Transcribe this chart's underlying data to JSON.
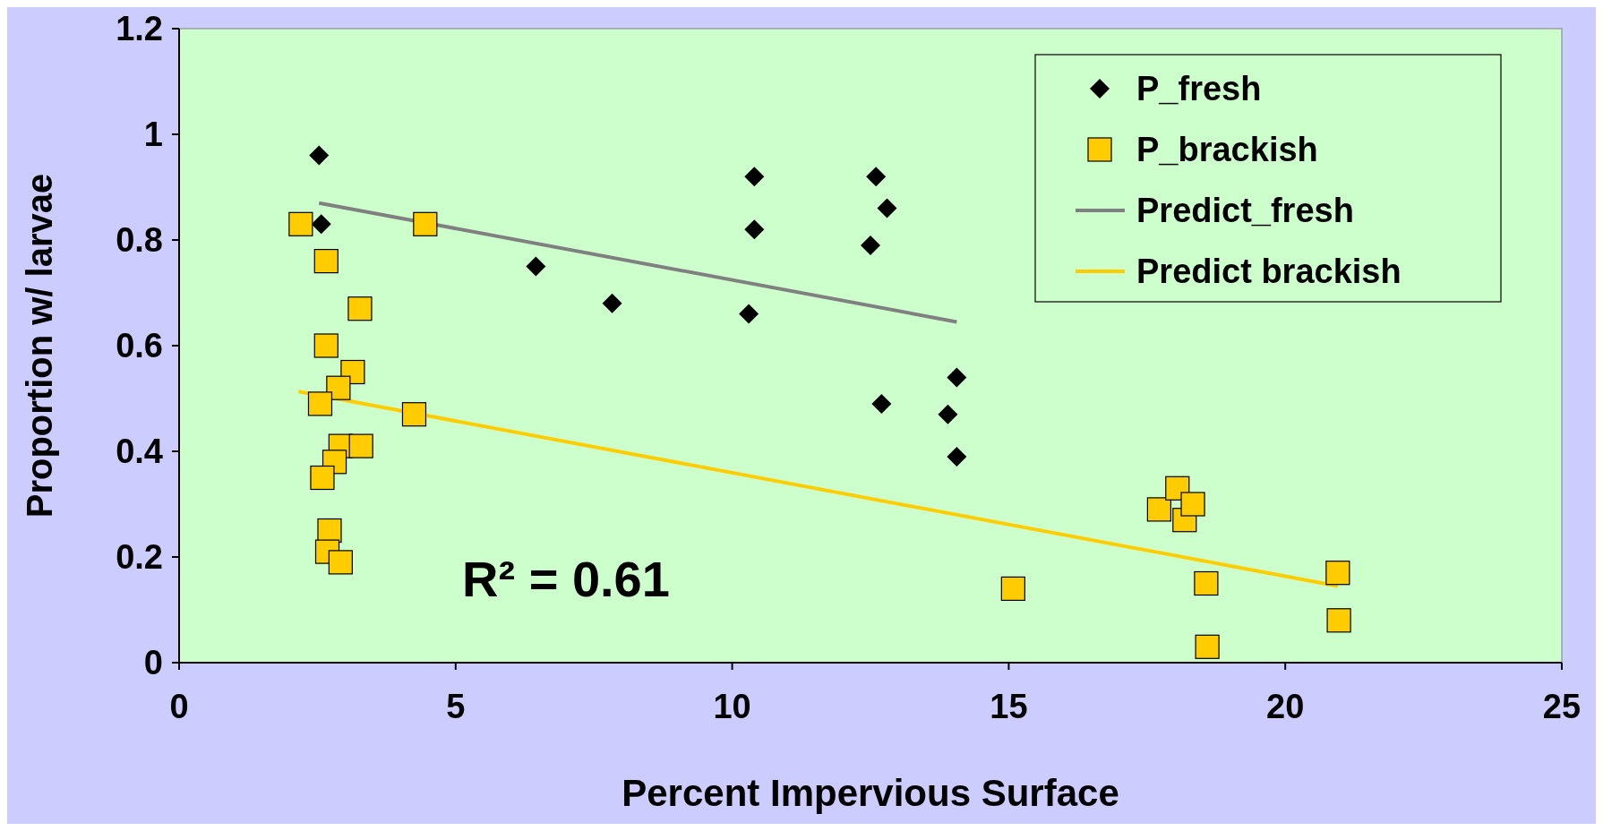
{
  "chart_data": {
    "type": "scatter",
    "xlabel": "Percent Impervious Surface",
    "ylabel": "Proportion w/ larvae",
    "xlim": [
      0,
      25
    ],
    "xticks": [
      0,
      5,
      10,
      15,
      20,
      25
    ],
    "ylim": [
      0,
      1.2
    ],
    "yticks": [
      0,
      0.2,
      0.4,
      0.6,
      0.8,
      1,
      1.2
    ],
    "grid": false,
    "legend": "top right",
    "annotations": [
      "R² = 0.61"
    ],
    "series": [
      {
        "name": "P_fresh",
        "marker": "diamond",
        "color": "#000000",
        "x": [
          2.53,
          2.57,
          6.45,
          7.83,
          10.4,
          10.4,
          10.3,
          12.6,
          12.8,
          12.5,
          12.7,
          14.06,
          13.9,
          14.06
        ],
        "values": [
          0.96,
          0.83,
          0.75,
          0.68,
          0.92,
          0.82,
          0.66,
          0.92,
          0.86,
          0.79,
          0.49,
          0.54,
          0.47,
          0.39
        ]
      },
      {
        "name": "P_brackish",
        "marker": "square",
        "color": "#ffcc00",
        "x": [
          2.2,
          4.45,
          2.66,
          3.27,
          2.66,
          3.14,
          2.88,
          2.55,
          4.25,
          2.92,
          3.29,
          2.81,
          2.59,
          2.72,
          2.68,
          2.92,
          17.72,
          18.05,
          18.18,
          18.33,
          15.08,
          18.57,
          18.59,
          20.95,
          20.97
        ],
        "values": [
          0.83,
          0.83,
          0.76,
          0.67,
          0.6,
          0.55,
          0.52,
          0.49,
          0.47,
          0.41,
          0.41,
          0.38,
          0.35,
          0.25,
          0.21,
          0.19,
          0.29,
          0.33,
          0.27,
          0.3,
          0.14,
          0.15,
          0.03,
          0.17,
          0.08
        ]
      },
      {
        "name": "Predict_fresh",
        "type": "line",
        "marker": "none",
        "color": "#808080",
        "x": [
          2.53,
          14.06
        ],
        "values": [
          0.87,
          0.645
        ]
      },
      {
        "name": "Predict brackish",
        "type": "line",
        "marker": "none",
        "color": "#ffcc00",
        "x": [
          2.16,
          20.95
        ],
        "values": [
          0.513,
          0.145
        ]
      }
    ]
  }
}
